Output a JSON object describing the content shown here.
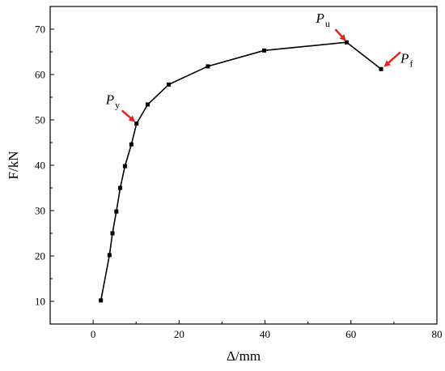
{
  "chart_data": {
    "type": "line",
    "title": "",
    "xlabel": "Δ/mm",
    "ylabel": "F/kN",
    "xlim": [
      -10,
      80
    ],
    "ylim": [
      5,
      75
    ],
    "xticks": [
      0,
      20,
      40,
      60,
      80
    ],
    "yticks": [
      10,
      20,
      30,
      40,
      50,
      60,
      70
    ],
    "grid": false,
    "legend": "none",
    "series": [
      {
        "color": "#000000",
        "marker": "square",
        "x": [
          1.8,
          3.8,
          4.5,
          5.4,
          6.3,
          7.4,
          8.9,
          10.1,
          12.7,
          17.6,
          26.7,
          39.8,
          59.0,
          67.0
        ],
        "y": [
          10.2,
          20.2,
          25.0,
          29.8,
          35.0,
          39.8,
          44.6,
          49.2,
          53.4,
          57.8,
          61.8,
          65.3,
          67.1,
          61.2
        ]
      }
    ],
    "annotations": [
      {
        "main": "P",
        "sub": "y",
        "x": 10.1,
        "y": 49.2
      },
      {
        "main": "P",
        "sub": "u",
        "x": 59.0,
        "y": 67.1
      },
      {
        "main": "P",
        "sub": "f",
        "x": 67.0,
        "y": 61.2
      }
    ],
    "arrow_color": "#e8231f"
  }
}
